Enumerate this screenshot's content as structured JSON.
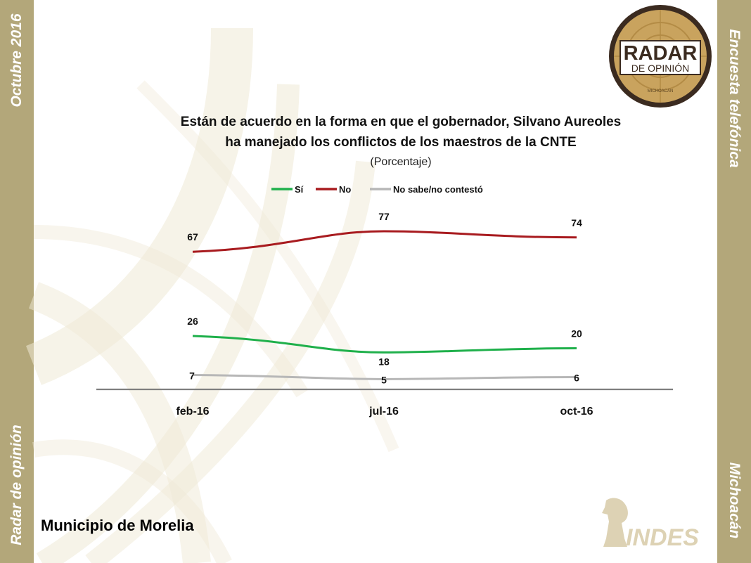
{
  "side": {
    "left_top": "Octubre 2016",
    "left_bottom": "Radar de opinión",
    "right_top": "Encuesta telefónica",
    "right_bottom": "Michoacán"
  },
  "logo": {
    "line1": "RADAR",
    "line2": "DE OPINIÓN",
    "line3": "MICHOACÁN"
  },
  "indes_logo": {
    "text": "INDES"
  },
  "footer": "Municipio de Morelia",
  "colors": {
    "sidebar": "#b3a77a",
    "si": "#1fb04b",
    "no": "#a81b1f",
    "nosabe": "#b7b7b7",
    "axis": "#7f7f7f"
  },
  "chart_data": {
    "type": "line",
    "title_line1": "Están de acuerdo en la forma en que el gobernador,  Silvano Aureoles",
    "title_line2": "ha manejado los conflictos  de los maestros de la CNTE",
    "subtitle": "(Porcentaje)",
    "categories": [
      "feb-16",
      "jul-16",
      "oct-16"
    ],
    "series": [
      {
        "name": "Sí",
        "values": [
          26,
          18,
          20
        ],
        "color": "#1fb04b"
      },
      {
        "name": "No",
        "values": [
          67,
          77,
          74
        ],
        "color": "#a81b1f"
      },
      {
        "name": "No sabe/no contestó",
        "values": [
          7,
          5,
          6
        ],
        "color": "#b7b7b7"
      }
    ],
    "legend_position": "top",
    "grid": false
  }
}
